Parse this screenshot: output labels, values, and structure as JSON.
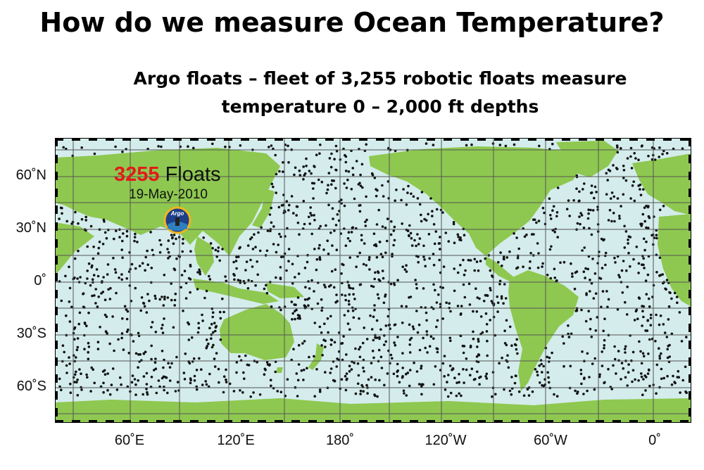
{
  "slide": {
    "title": "How do we measure Ocean Temperature?",
    "subtitle_line1": "Argo floats – fleet of 3,255 robotic floats measure",
    "subtitle_line2": "temperature 0 – 2,000 ft depths"
  },
  "map": {
    "overlay": {
      "count": "3255",
      "count_suffix": "Floats",
      "date": "19-May-2010",
      "logo_text": "Argo"
    },
    "lat_labels": [
      "60˚N",
      "30˚N",
      "0˚",
      "30˚S",
      "60˚S"
    ],
    "lon_labels": [
      "60˚E",
      "120˚E",
      "180˚",
      "120˚W",
      "60˚W",
      "0˚"
    ],
    "colors": {
      "ocean": "#d4ecec",
      "land": "#8ec850",
      "float": "#111111",
      "grid": "#555555",
      "count_highlight": "#e21b1b"
    }
  }
}
